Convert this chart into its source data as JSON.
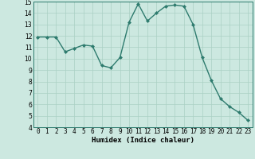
{
  "xlabel": "Humidex (Indice chaleur)",
  "x": [
    0,
    1,
    2,
    3,
    4,
    5,
    6,
    7,
    8,
    9,
    10,
    11,
    12,
    13,
    14,
    15,
    16,
    17,
    18,
    19,
    20,
    21,
    22,
    23
  ],
  "y": [
    11.9,
    11.9,
    11.9,
    10.6,
    10.9,
    11.2,
    11.1,
    9.4,
    9.2,
    10.1,
    13.2,
    14.8,
    13.3,
    14.0,
    14.6,
    14.7,
    14.6,
    13.0,
    10.1,
    8.1,
    6.5,
    5.8,
    5.3,
    4.6
  ],
  "line_color": "#2e7b6e",
  "marker": "D",
  "marker_size": 2.0,
  "linewidth": 1.0,
  "ylim": [
    4,
    15
  ],
  "yticks": [
    4,
    5,
    6,
    7,
    8,
    9,
    10,
    11,
    12,
    13,
    14,
    15
  ],
  "xtick_labels": [
    "0",
    "1",
    "2",
    "3",
    "4",
    "5",
    "6",
    "7",
    "8",
    "9",
    "10",
    "11",
    "12",
    "13",
    "14",
    "15",
    "16",
    "17",
    "18",
    "19",
    "20",
    "21",
    "22",
    "23"
  ],
  "bg_color": "#cce8e0",
  "grid_color": "#aad0c4",
  "axis_fontsize": 6.5,
  "tick_fontsize": 5.5,
  "xlabel_fontsize": 6.5
}
